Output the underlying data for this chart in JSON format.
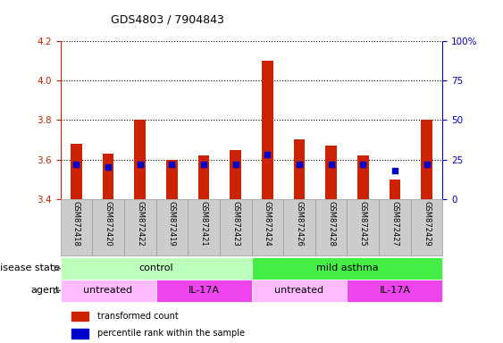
{
  "title": "GDS4803 / 7904843",
  "samples": [
    "GSM872418",
    "GSM872420",
    "GSM872422",
    "GSM872419",
    "GSM872421",
    "GSM872423",
    "GSM872424",
    "GSM872426",
    "GSM872428",
    "GSM872425",
    "GSM872427",
    "GSM872429"
  ],
  "bar_values": [
    3.68,
    3.63,
    3.8,
    3.6,
    3.62,
    3.65,
    4.1,
    3.7,
    3.67,
    3.62,
    3.5,
    3.8
  ],
  "bar_bottom": 3.4,
  "percentile_values": [
    22,
    20,
    22,
    22,
    22,
    22,
    28,
    22,
    22,
    22,
    18,
    22
  ],
  "ylim": [
    3.4,
    4.2
  ],
  "y2lim": [
    0,
    100
  ],
  "yticks": [
    3.4,
    3.6,
    3.8,
    4.0,
    4.2
  ],
  "y2ticks": [
    0,
    25,
    50,
    75,
    100
  ],
  "bar_color": "#cc2200",
  "dot_color": "#0000cc",
  "disease_state_groups": [
    {
      "label": "control",
      "start": 0,
      "end": 6,
      "color": "#bbffbb"
    },
    {
      "label": "mild asthma",
      "start": 6,
      "end": 12,
      "color": "#44ee44"
    }
  ],
  "agent_groups": [
    {
      "label": "untreated",
      "start": 0,
      "end": 3,
      "color": "#ffbbff"
    },
    {
      "label": "IL-17A",
      "start": 3,
      "end": 6,
      "color": "#ee44ee"
    },
    {
      "label": "untreated",
      "start": 6,
      "end": 9,
      "color": "#ffbbff"
    },
    {
      "label": "IL-17A",
      "start": 9,
      "end": 12,
      "color": "#ee44ee"
    }
  ],
  "ds_row_label": "disease state",
  "agent_row_label": "agent",
  "legend_items": [
    {
      "label": "transformed count",
      "color": "#cc2200"
    },
    {
      "label": "percentile rank within the sample",
      "color": "#0000cc"
    }
  ],
  "background_color": "#ffffff",
  "tick_label_color_left": "#cc2200",
  "tick_label_color_right": "#0000cc",
  "sample_bg_color": "#cccccc",
  "sample_border_color": "#999999"
}
